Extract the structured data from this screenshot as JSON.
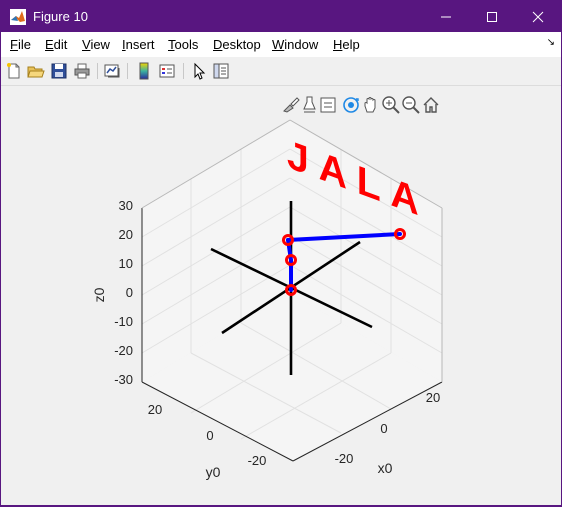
{
  "window": {
    "title": "Figure 10",
    "minimize_glyph": "—",
    "maximize_glyph": "☐",
    "close_glyph": "✕"
  },
  "menu": {
    "items": [
      {
        "label": "File",
        "underline": "F",
        "rest": "ile"
      },
      {
        "label": "Edit",
        "underline": "E",
        "rest": "dit"
      },
      {
        "label": "View",
        "underline": "V",
        "rest": "iew"
      },
      {
        "label": "Insert",
        "underline": "I",
        "rest": "nsert"
      },
      {
        "label": "Tools",
        "underline": "T",
        "rest": "ools"
      },
      {
        "label": "Desktop",
        "underline": "D",
        "rest": "esktop"
      },
      {
        "label": "Window",
        "underline": "W",
        "rest": "indow"
      },
      {
        "label": "Help",
        "underline": "H",
        "rest": "elp"
      }
    ],
    "dock_glyph": "↘"
  },
  "toolbar": {
    "icons": [
      "new-figure-icon",
      "open-file-icon",
      "save-icon",
      "print-icon",
      "link-plot-icon",
      "insert-colorbar-icon",
      "insert-legend-icon",
      "pointer-icon",
      "property-inspector-icon"
    ]
  },
  "axes_toolbar": {
    "icons": [
      "brush-icon",
      "data-tips-icon",
      "legend-toggle-icon",
      "rotate-3d-icon",
      "pan-icon",
      "zoom-in-icon",
      "zoom-out-icon",
      "home-icon"
    ]
  },
  "plot": {
    "z_label": "z0",
    "y_label": "y0",
    "x_label": "x0",
    "z_ticks": [
      "30",
      "20",
      "10",
      "0",
      "-10",
      "-20",
      "-30"
    ],
    "y_ticks": [
      "20",
      "0",
      "-20"
    ],
    "x_ticks": [
      "20",
      "0",
      "-20"
    ],
    "annotation": "JALA",
    "colors": {
      "links": "#0000ff",
      "joints": "#ff0000",
      "axes": "#000000",
      "text": "#ff0000",
      "grid": "#e1e1e1"
    }
  }
}
